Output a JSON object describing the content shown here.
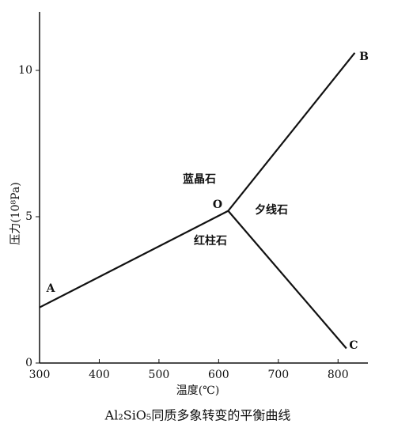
{
  "chart_data": {
    "type": "line",
    "title": "Al₂SiO₅同质多象转变的平衡曲线",
    "xlabel": "温度(℃)",
    "ylabel": "压力(10⁸Pa)",
    "xlim": [
      300,
      850
    ],
    "ylim": [
      0,
      12
    ],
    "xticks": [
      300,
      400,
      500,
      600,
      700,
      800
    ],
    "yticks": [
      0,
      5,
      10
    ],
    "series": [
      {
        "color": "#111111",
        "x": [
          300,
          616
        ],
        "values": [
          1.9,
          5.2
        ]
      },
      {
        "color": "#111111",
        "x": [
          616,
          828
        ],
        "values": [
          5.2,
          10.6
        ]
      },
      {
        "color": "#111111",
        "x": [
          616,
          814
        ],
        "values": [
          5.2,
          0.5
        ]
      }
    ],
    "annotations": [
      "A",
      "O",
      "B",
      "C",
      "蓝晶石",
      "红柱石",
      "夕线石"
    ]
  }
}
